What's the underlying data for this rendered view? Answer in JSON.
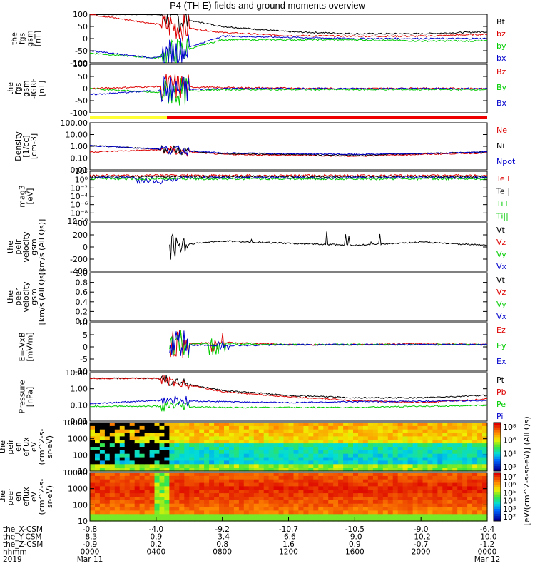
{
  "title": "P4 (TH-E) fields and ground moments overview",
  "panels": [
    {
      "id": "fgs-gsm",
      "ylabel": [
        "the",
        "fgs",
        "gsm",
        "[nT]"
      ],
      "yticks": [
        "100",
        "50",
        "0",
        "-50",
        "-100"
      ],
      "ylim": [
        -100,
        100
      ],
      "legend": [
        {
          "label": "Bt",
          "color": "#000000"
        },
        {
          "label": "bz",
          "color": "#dd0000"
        },
        {
          "label": "by",
          "color": "#00cc00"
        },
        {
          "label": "bx",
          "color": "#0000cc"
        }
      ]
    },
    {
      "id": "fgs-igrf",
      "ylabel": [
        "the",
        "fgs",
        "gsm",
        "-IGRF",
        "[nT]"
      ],
      "yticks": [
        "100",
        "50",
        "0",
        "-50",
        "-100"
      ],
      "ylim": [
        -120,
        120
      ],
      "legend": [
        {
          "label": "Bz",
          "color": "#dd0000"
        },
        {
          "label": "By",
          "color": "#00cc00"
        },
        {
          "label": "Bx",
          "color": "#0000cc"
        }
      ]
    },
    {
      "id": "density",
      "ylabel": [
        "Density",
        "[1/cc]",
        "[cm-3]"
      ],
      "yticks": [
        "100.00",
        "10.00",
        "1.00",
        "0.10",
        "0.01"
      ],
      "log": true,
      "ylim": [
        0.01,
        300
      ],
      "legend": [
        {
          "label": "Ne",
          "color": "#dd0000"
        },
        {
          "label": "Ni",
          "color": "#000000"
        },
        {
          "label": "Npot",
          "color": "#0000cc"
        }
      ]
    },
    {
      "id": "temperature",
      "ylabel": [
        "mag3",
        "[eV]"
      ],
      "yticks": [
        "10²",
        "10⁰",
        "10⁻²",
        "10⁻⁴",
        "10⁻⁶",
        "10⁻⁸",
        "10⁻¹⁰"
      ],
      "log": true,
      "legend": [
        {
          "label": "Te⊥",
          "color": "#dd0000"
        },
        {
          "label": "Te||",
          "color": "#000000"
        },
        {
          "label": "Ti⊥",
          "color": "#00cc00"
        },
        {
          "label": "Ti||",
          "color": "#00cc00"
        }
      ]
    },
    {
      "id": "peir-velocity",
      "ylabel": [
        "the",
        "peir",
        "velocity",
        "gsm",
        "[km/s (All Qs)]"
      ],
      "yticks": [
        "400",
        "200",
        "0",
        "-200",
        "-400"
      ],
      "ylim": [
        -400,
        400
      ],
      "legend": [
        {
          "label": "Vt",
          "color": "#000000"
        },
        {
          "label": "Vz",
          "color": "#dd0000"
        },
        {
          "label": "Vy",
          "color": "#00cc00"
        },
        {
          "label": "Vx",
          "color": "#0000cc"
        }
      ]
    },
    {
      "id": "peer-velocity",
      "ylabel": [
        "the",
        "peer",
        "velocity",
        "gsm",
        "[km/s (All Qs)]"
      ],
      "yticks": [
        "1.0",
        "0.8",
        "0.6",
        "0.4",
        "0.2",
        "0.0"
      ],
      "ylim": [
        0,
        1
      ],
      "legend": [
        {
          "label": "Vt",
          "color": "#000000"
        },
        {
          "label": "Vz",
          "color": "#dd0000"
        },
        {
          "label": "Vy",
          "color": "#00cc00"
        },
        {
          "label": "Vx",
          "color": "#0000cc"
        }
      ]
    },
    {
      "id": "efield",
      "ylabel": [
        "E=-VxB",
        "[mV/m]"
      ],
      "yticks": [
        "10",
        "5",
        "0",
        "-5",
        "-10"
      ],
      "ylim": [
        -12,
        10
      ],
      "legend": [
        {
          "label": "Ez",
          "color": "#dd0000"
        },
        {
          "label": "Ey",
          "color": "#00cc00"
        },
        {
          "label": "Ex",
          "color": "#0000cc"
        }
      ]
    },
    {
      "id": "pressure",
      "ylabel": [
        "Pressure",
        "[nPa]"
      ],
      "yticks": [
        "10.00",
        "1.00",
        "0.10",
        "0.01"
      ],
      "log": true,
      "ylim": [
        0.003,
        30
      ],
      "legend": [
        {
          "label": "Pt",
          "color": "#000000"
        },
        {
          "label": "Pb",
          "color": "#dd0000"
        },
        {
          "label": "Pe",
          "color": "#00cc00"
        },
        {
          "label": "Pi",
          "color": "#0000cc"
        }
      ]
    },
    {
      "id": "peir-eflux",
      "ylabel": [
        "the",
        "peir",
        "en",
        "eflux",
        "eV",
        "(cm^2-s-",
        "sr-eV)"
      ],
      "yticks": [
        "10000",
        "1000",
        "100",
        "10"
      ],
      "cbar": {
        "label": "[eV/(cm^2-s-sr-eV)] (All Qs)",
        "ticks": [
          "10⁸",
          "10⁶",
          "10⁴",
          "10³"
        ]
      }
    },
    {
      "id": "peer-eflux",
      "ylabel": [
        "the",
        "peer",
        "en",
        "eflux",
        "eV",
        "(cm^2-s-",
        "sr-eV)"
      ],
      "yticks": [
        "10000",
        "1000",
        "100",
        "10"
      ],
      "cbar": {
        "label": "[eV/(cm^2-s-sr-eV)]",
        "ticks": [
          "10⁷",
          "10⁶",
          "10⁵",
          "10⁴",
          "10³",
          "10²"
        ]
      }
    }
  ],
  "xaxis": {
    "rows": [
      {
        "label": "the_X-CSM",
        "values": [
          "-0.8",
          "-4.0",
          "-9.2",
          "-10.7",
          "-10.5",
          "-9.0",
          "-6.4"
        ]
      },
      {
        "label": "the_Y-CSM",
        "values": [
          "-8.3",
          "0.9",
          "-3.4",
          "-6.6",
          "-9.0",
          "-10.2",
          "-10.0"
        ]
      },
      {
        "label": "the_Z-CSM",
        "values": [
          "-0.9",
          "0.2",
          "0.8",
          "1.6",
          "0.9",
          "-0.7",
          "-1.2"
        ]
      },
      {
        "label": "hhmm",
        "values": [
          "0000",
          "0400",
          "0800",
          "1200",
          "1600",
          "2000",
          "0000"
        ]
      }
    ],
    "year": "2019",
    "start_date": "Mar 11",
    "end_date": "Mar 12"
  },
  "chart_data": [
    {
      "type": "line",
      "title": "P4 (TH-E) fields and ground moments overview",
      "ylabel": "the fgs gsm [nT]",
      "ylim": [
        -100,
        100
      ],
      "x": [
        "0000",
        "0400",
        "0800",
        "1200",
        "1600",
        "2000",
        "0000"
      ],
      "series": [
        {
          "name": "Bt",
          "values": [
            100,
            100,
            50,
            28,
            20,
            20,
            28
          ]
        },
        {
          "name": "bz",
          "values": [
            100,
            60,
            25,
            12,
            10,
            10,
            18
          ]
        },
        {
          "name": "by",
          "values": [
            -60,
            -80,
            -5,
            -5,
            -5,
            -10,
            -10
          ]
        },
        {
          "name": "bx",
          "values": [
            -50,
            -80,
            10,
            5,
            0,
            0,
            0
          ]
        }
      ]
    },
    {
      "type": "line",
      "ylabel": "the fgs gsm-IGRF [nT]",
      "ylim": [
        -120,
        120
      ],
      "x": [
        "0000",
        "0400",
        "0800",
        "1200",
        "1600",
        "2000",
        "0000"
      ],
      "series": [
        {
          "name": "Bz",
          "values": [
            0,
            10,
            5,
            2,
            0,
            2,
            0
          ]
        },
        {
          "name": "By",
          "values": [
            0,
            -20,
            -5,
            -5,
            -5,
            -5,
            -5
          ]
        },
        {
          "name": "Bx",
          "values": [
            -30,
            -10,
            0,
            0,
            0,
            0,
            0
          ]
        }
      ]
    },
    {
      "type": "line",
      "ylabel": "Density [1/cc] [cm-3]",
      "ylim": [
        0.01,
        300
      ],
      "log": true,
      "x": [
        "0000",
        "0400",
        "0800",
        "1200",
        "1600",
        "2000",
        "0000"
      ],
      "series": [
        {
          "name": "Ne",
          "values": [
            0.5,
            0.8,
            0.3,
            0.25,
            0.2,
            0.3,
            0.4
          ]
        },
        {
          "name": "Ni",
          "values": [
            2,
            1,
            0.35,
            0.3,
            0.25,
            0.35,
            0.5
          ]
        },
        {
          "name": "Npot",
          "values": [
            2,
            1,
            0.4,
            0.35,
            0.3,
            0.35,
            0.5
          ]
        }
      ]
    },
    {
      "type": "line",
      "ylabel": "mag3 [eV]",
      "log": true,
      "x": [
        "0000",
        "0400",
        "0800",
        "1200",
        "1600",
        "2000",
        "0000"
      ],
      "series": [
        {
          "name": "Te⊥",
          "values": [
            100,
            100,
            100,
            100,
            100,
            100,
            100
          ]
        },
        {
          "name": "Te||",
          "values": [
            100,
            100,
            100,
            100,
            100,
            100,
            100
          ]
        },
        {
          "name": "Ti⊥",
          "values": [
            100,
            100,
            100,
            100,
            100,
            100,
            100
          ]
        },
        {
          "name": "Ti||",
          "values": [
            100,
            100,
            100,
            100,
            100,
            100,
            100
          ]
        }
      ]
    },
    {
      "type": "line",
      "ylabel": "the peir velocity gsm [km/s (All Qs)]",
      "ylim": [
        -400,
        400
      ],
      "x": [
        "0000",
        "0400",
        "0800",
        "1200",
        "1600",
        "2000",
        "0000"
      ],
      "series": [
        {
          "name": "Vt",
          "values": [
            0,
            0,
            100,
            60,
            30,
            80,
            30
          ]
        }
      ]
    },
    {
      "type": "line",
      "ylabel": "the peer velocity gsm [km/s (All Qs)]",
      "ylim": [
        0,
        1
      ],
      "series": []
    },
    {
      "type": "line",
      "ylabel": "E=-VxB [mV/m]",
      "ylim": [
        -12,
        10
      ],
      "x": [
        "0000",
        "0400",
        "0800",
        "1200",
        "1600",
        "2000",
        "0000"
      ],
      "series": [
        {
          "name": "Ez",
          "values": [
            0,
            0,
            1,
            0,
            0,
            0.5,
            0
          ]
        },
        {
          "name": "Ey",
          "values": [
            0,
            0,
            0.5,
            0,
            0,
            0,
            0
          ]
        },
        {
          "name": "Ex",
          "values": [
            0,
            0,
            -0.5,
            0,
            0,
            0,
            0
          ]
        }
      ]
    },
    {
      "type": "line",
      "ylabel": "Pressure [nPa]",
      "ylim": [
        0.003,
        30
      ],
      "log": true,
      "x": [
        "0000",
        "0400",
        "0800",
        "1200",
        "1600",
        "2000",
        "0000"
      ],
      "series": [
        {
          "name": "Pt",
          "values": [
            10,
            10,
            1.0,
            0.4,
            0.25,
            0.25,
            0.4
          ]
        },
        {
          "name": "Pb",
          "values": [
            10,
            10,
            0.8,
            0.3,
            0.15,
            0.1,
            0.2
          ]
        },
        {
          "name": "Pe",
          "values": [
            0.05,
            0.05,
            0.04,
            0.04,
            0.04,
            0.05,
            0.06
          ]
        },
        {
          "name": "Pi",
          "values": [
            0.08,
            0.15,
            0.12,
            0.1,
            0.12,
            0.13,
            0.15
          ]
        }
      ]
    },
    {
      "type": "heatmap",
      "ylabel": "the peir en eflux eV (cm^2-s-sr-eV)",
      "yticks": [
        "10000",
        "1000",
        "100",
        "10"
      ]
    },
    {
      "type": "heatmap",
      "ylabel": "the peer en eflux eV (cm^2-s-sr-eV)",
      "yticks": [
        "10000",
        "1000",
        "100",
        "10"
      ]
    }
  ]
}
